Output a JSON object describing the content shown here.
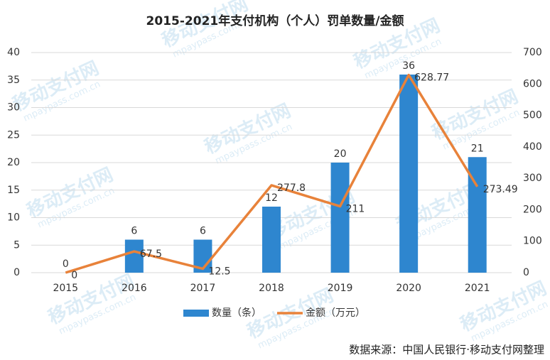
{
  "chart_data": {
    "type": "bar-line",
    "title": "2015-2021年支付机构（个人）罚单数量/金额",
    "categories": [
      "2015",
      "2016",
      "2017",
      "2018",
      "2019",
      "2020",
      "2021"
    ],
    "series": [
      {
        "name": "数量（条）",
        "type": "bar",
        "color": "#2e86cf",
        "values": [
          0,
          6,
          6,
          12,
          20,
          36,
          21
        ]
      },
      {
        "name": "金额（万元）",
        "type": "line",
        "axis": "y2",
        "color": "#e8823a",
        "values": [
          0,
          67.5,
          12.5,
          277.8,
          211,
          628.77,
          273.49
        ]
      }
    ],
    "ylim": [
      0,
      40
    ],
    "yticks": [
      0,
      5,
      10,
      15,
      20,
      25,
      30,
      35,
      40
    ],
    "y2lim": [
      0,
      700
    ],
    "y2ticks": [
      0,
      100,
      200,
      300,
      400,
      500,
      600,
      700
    ],
    "grid": true,
    "legend": "bottom",
    "source": "数据来源：中国人民银行·移动支付网整理",
    "watermark": "移动支付网",
    "watermark_url": "mpaypass.com.cn"
  }
}
